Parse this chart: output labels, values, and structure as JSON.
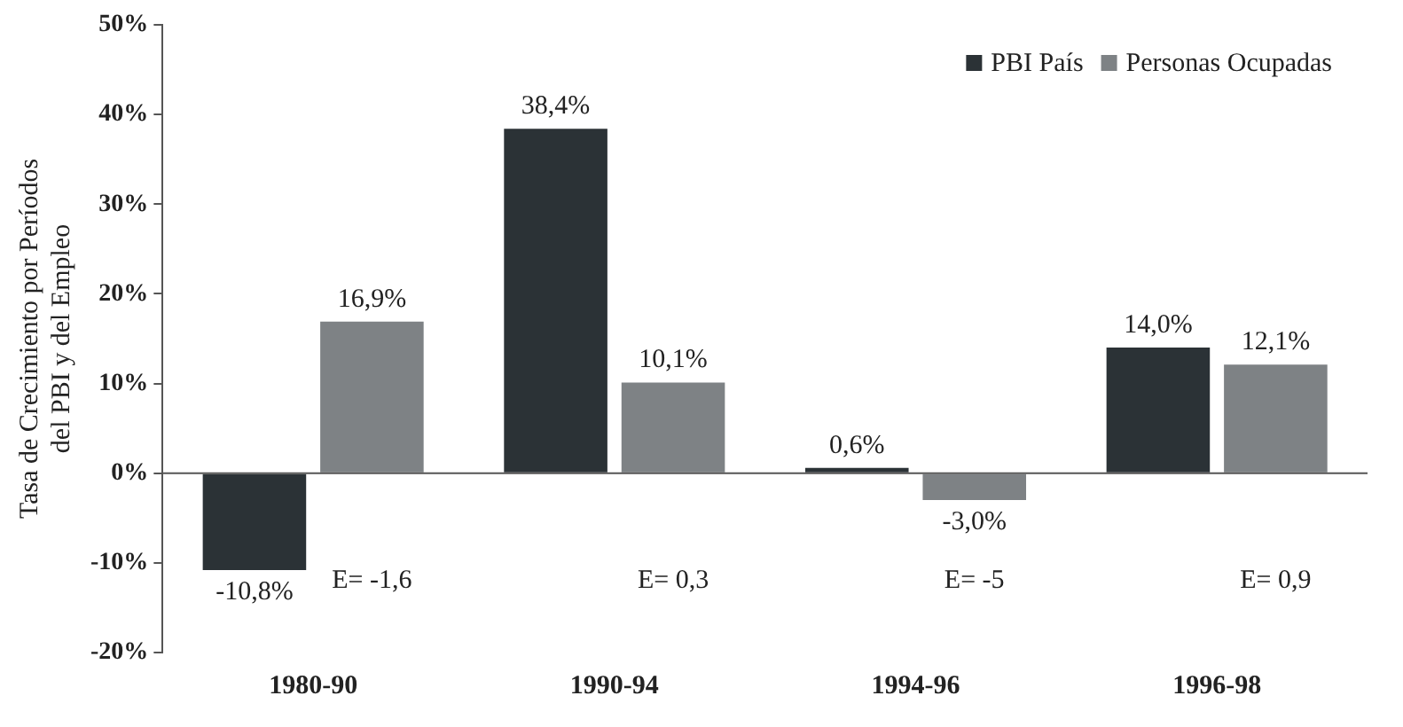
{
  "chart_data": {
    "type": "bar",
    "ylabel": "Tasa de Crecimiento por Períodos\ndel PBI y del Empleo",
    "categories": [
      "1980-90",
      "1990-94",
      "1994-96",
      "1996-98"
    ],
    "series": [
      {
        "name": "PBI País",
        "color": "#2b3236",
        "values": [
          -10.8,
          38.4,
          0.6,
          14.0
        ],
        "value_labels": [
          "-10,8%",
          "38,4%",
          "0,6%",
          "14,0%"
        ]
      },
      {
        "name": "Personas Ocupadas",
        "color": "#7e8285",
        "values": [
          16.9,
          10.1,
          -3.0,
          12.1
        ],
        "value_labels": [
          "16,9%",
          "10,1%",
          "-3,0%",
          "12,1%"
        ]
      }
    ],
    "ylim": [
      -20,
      50
    ],
    "yticks": [
      {
        "value": -20,
        "label": "-20%"
      },
      {
        "value": -10,
        "label": "-10%"
      },
      {
        "value": 0,
        "label": "0%"
      },
      {
        "value": 10,
        "label": "10%"
      },
      {
        "value": 20,
        "label": "20%"
      },
      {
        "value": 30,
        "label": "30%"
      },
      {
        "value": 40,
        "label": "40%"
      },
      {
        "value": 50,
        "label": "50%"
      }
    ],
    "annotations": [
      "E= -1,6",
      "E= 0,3",
      "E= -5",
      "E= 0,9"
    ],
    "ref_lines": [
      {
        "axis": "y",
        "value": 0,
        "color": "#555555"
      }
    ],
    "grid": false,
    "legend": "top right"
  }
}
